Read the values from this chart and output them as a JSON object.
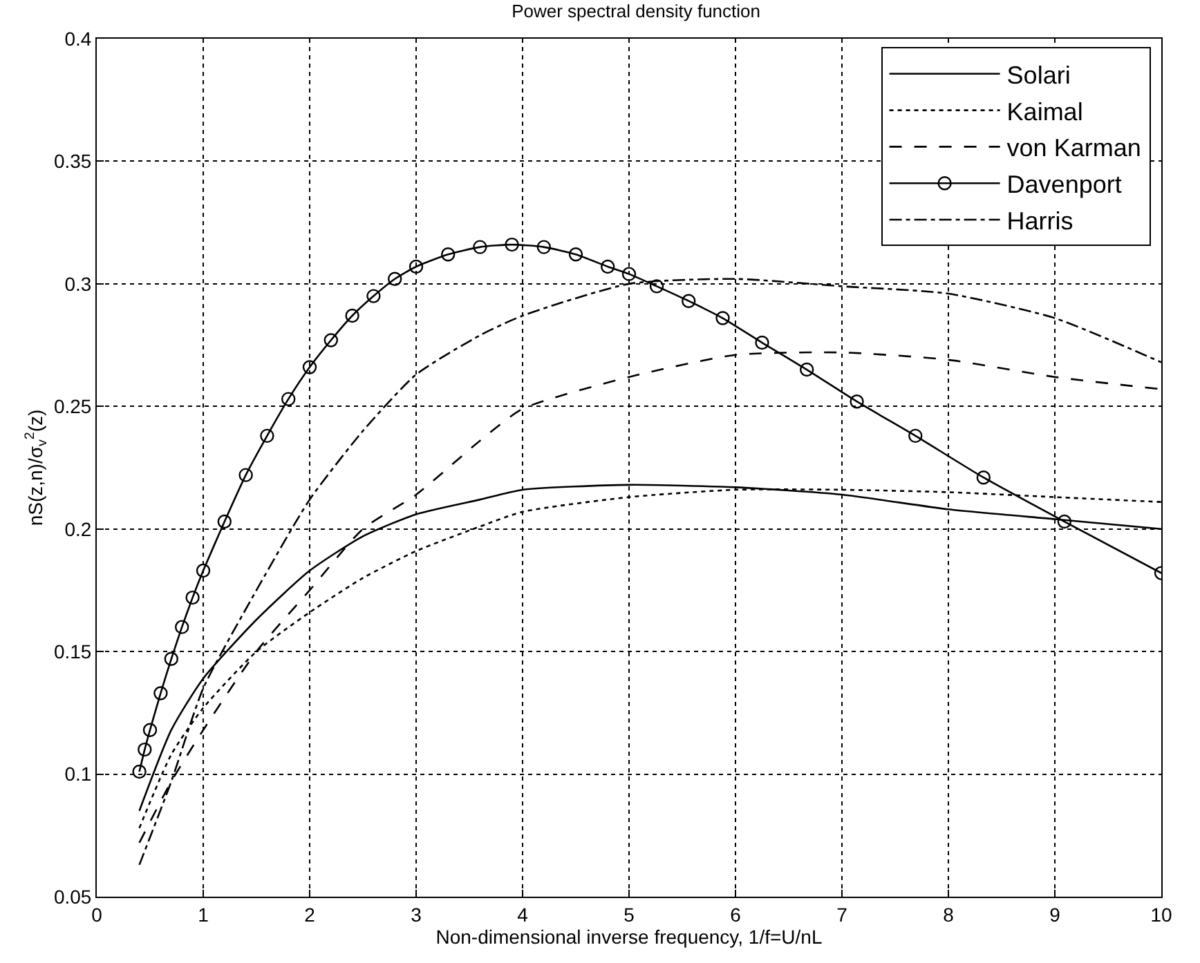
{
  "chart_data": {
    "type": "line",
    "title": "Power spectral density function",
    "xlabel": "Non-dimensional inverse frequency, 1/f=U/nL",
    "ylabel": "nS(z,n)/σ$_{v}$$^{2}$(z)",
    "xlim": [
      0,
      10
    ],
    "ylim": [
      0.05,
      0.4
    ],
    "xticks": [
      0,
      1,
      2,
      3,
      4,
      5,
      6,
      7,
      8,
      9,
      10
    ],
    "yticks": [
      0.05,
      0.1,
      0.15,
      0.2,
      0.25,
      0.3,
      0.35,
      0.4
    ],
    "grid": true,
    "legend": "top right",
    "series": [
      {
        "name": "Solari",
        "color": "#000000",
        "line_style": "solid",
        "marker": "none",
        "x": [
          0.4,
          0.7,
          1,
          1.5,
          2,
          2.5,
          3,
          3.6,
          4,
          5,
          6,
          7,
          8,
          9,
          10
        ],
        "values": [
          0.085,
          0.118,
          0.139,
          0.163,
          0.183,
          0.197,
          0.206,
          0.212,
          0.216,
          0.218,
          0.217,
          0.214,
          0.208,
          0.204,
          0.2
        ]
      },
      {
        "name": "Kaimal",
        "color": "#000000",
        "line_style": "dotted",
        "marker": "none",
        "x": [
          0.4,
          0.7,
          1,
          1.5,
          2,
          2.5,
          3,
          3.6,
          4,
          5,
          6,
          7,
          8,
          9,
          10
        ],
        "values": [
          0.078,
          0.108,
          0.127,
          0.15,
          0.166,
          0.18,
          0.191,
          0.201,
          0.207,
          0.213,
          0.216,
          0.216,
          0.215,
          0.213,
          0.211
        ]
      },
      {
        "name": "von Karman",
        "color": "#000000",
        "line_style": "dashed",
        "marker": "none",
        "x": [
          0.4,
          0.7,
          1,
          1.5,
          2,
          2.5,
          3,
          3.6,
          4,
          5,
          6,
          7,
          8,
          9,
          10
        ],
        "values": [
          0.072,
          0.097,
          0.118,
          0.15,
          0.175,
          0.2,
          0.214,
          0.236,
          0.249,
          0.262,
          0.271,
          0.272,
          0.269,
          0.262,
          0.257
        ]
      },
      {
        "name": "Davenport",
        "color": "#000000",
        "line_style": "solid",
        "marker": "circle",
        "x": [
          0.4,
          0.45,
          0.5,
          0.6,
          0.7,
          0.8,
          0.9,
          1.0,
          1.2,
          1.4,
          1.6,
          1.8,
          2.0,
          2.2,
          2.4,
          2.6,
          2.8,
          3.0,
          3.3,
          3.6,
          3.9,
          4.2,
          4.5,
          4.8,
          5.0,
          5.26,
          5.56,
          5.88,
          6.25,
          6.67,
          7.14,
          7.69,
          8.33,
          9.09,
          10
        ],
        "values": [
          0.101,
          0.11,
          0.118,
          0.133,
          0.147,
          0.16,
          0.172,
          0.183,
          0.203,
          0.222,
          0.238,
          0.253,
          0.266,
          0.277,
          0.287,
          0.295,
          0.302,
          0.307,
          0.312,
          0.315,
          0.316,
          0.315,
          0.312,
          0.307,
          0.304,
          0.299,
          0.293,
          0.286,
          0.276,
          0.265,
          0.252,
          0.238,
          0.221,
          0.203,
          0.182
        ]
      },
      {
        "name": "Harris",
        "color": "#000000",
        "line_style": "dashdot",
        "marker": "none",
        "x": [
          0.4,
          0.7,
          1,
          1.5,
          2,
          2.5,
          3,
          3.6,
          4,
          5,
          6,
          7,
          8,
          9,
          10
        ],
        "values": [
          0.063,
          0.097,
          0.135,
          0.175,
          0.212,
          0.24,
          0.263,
          0.279,
          0.287,
          0.3,
          0.302,
          0.299,
          0.296,
          0.286,
          0.268
        ]
      }
    ]
  }
}
